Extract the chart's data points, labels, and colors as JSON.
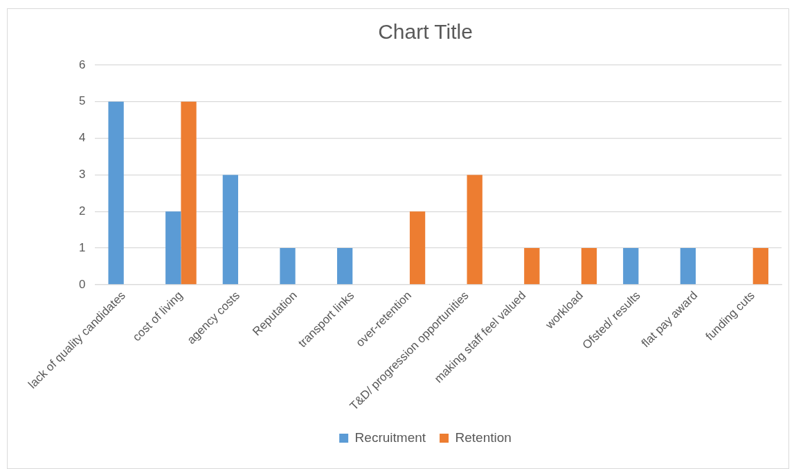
{
  "chart_data": {
    "type": "bar",
    "title": "Chart Title",
    "categories": [
      "lack of quality candidates",
      "cost of living",
      "agency costs",
      "Reputation",
      "transport links",
      "over-retention",
      "T&D/ progression opportunities",
      "making staff feel valued",
      "workload",
      "Ofsted/ results",
      "flat pay award",
      "funding cuts"
    ],
    "series": [
      {
        "name": "Recruitment",
        "color": "#5b9bd5",
        "values": [
          5,
          2,
          3,
          1,
          1,
          null,
          null,
          null,
          null,
          1,
          1,
          null
        ]
      },
      {
        "name": "Retention",
        "color": "#ed7d31",
        "values": [
          null,
          5,
          null,
          null,
          null,
          2,
          3,
          1,
          1,
          null,
          null,
          1
        ]
      }
    ],
    "ylim": [
      0,
      6
    ],
    "yticks": [
      0,
      1,
      2,
      3,
      4,
      5,
      6
    ],
    "grid": "y",
    "legend": "bottom"
  }
}
